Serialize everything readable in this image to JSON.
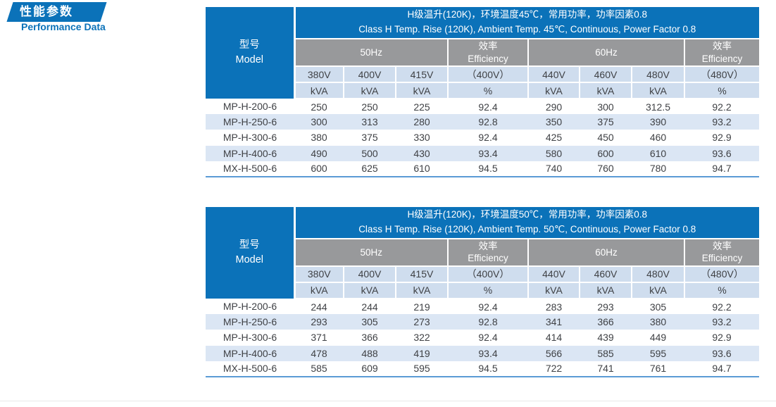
{
  "section": {
    "title_zh": "性能参数",
    "title_en": "Performance Data"
  },
  "colors": {
    "primary_blue": "#0b72b9",
    "header_gray": "#98999b",
    "light_blue_header_row": "#cfddee",
    "stripe_row": "#dbe6f4",
    "table_bottom_line": "#5b9bd5",
    "body_text": "#3f4145"
  },
  "tables": [
    {
      "model_label": {
        "lines": [
          "型号",
          "Model"
        ]
      },
      "header": {
        "lines": [
          "H级温升(120K)，环境温度45℃，常用功率，功率因素0.8",
          "Class H Temp. Rise (120K), Ambient Temp. 45℃, Continuous, Power Factor 0.8"
        ]
      },
      "group_headers": [
        {
          "span": 3,
          "lines": [
            "50Hz"
          ]
        },
        {
          "span": 1,
          "lines": [
            "效率",
            "Efficiency"
          ]
        },
        {
          "span": 3,
          "lines": [
            "60Hz"
          ]
        },
        {
          "span": 1,
          "lines": [
            "效率",
            "Efficiency"
          ]
        }
      ],
      "voltage_headers": [
        "380V",
        "400V",
        "415V",
        "（400V）",
        "440V",
        "460V",
        "480V",
        "（480V）"
      ],
      "unit_headers": [
        "kVA",
        "kVA",
        "kVA",
        "%",
        "kVA",
        "kVA",
        "kVA",
        "%"
      ],
      "rows": [
        {
          "model": "MP-H-200-6",
          "values": [
            "250",
            "250",
            "225",
            "92.4",
            "290",
            "300",
            "312.5",
            "92.2"
          ]
        },
        {
          "model": "MP-H-250-6",
          "values": [
            "300",
            "313",
            "280",
            "92.8",
            "350",
            "375",
            "390",
            "93.2"
          ]
        },
        {
          "model": "MP-H-300-6",
          "values": [
            "380",
            "375",
            "330",
            "92.4",
            "425",
            "450",
            "460",
            "92.9"
          ]
        },
        {
          "model": "MP-H-400-6",
          "values": [
            "490",
            "500",
            "430",
            "93.4",
            "580",
            "600",
            "610",
            "93.6"
          ]
        },
        {
          "model": "MX-H-500-6",
          "values": [
            "600",
            "625",
            "610",
            "94.5",
            "740",
            "760",
            "780",
            "94.7"
          ]
        }
      ]
    },
    {
      "model_label": {
        "lines": [
          "型号",
          "Model"
        ]
      },
      "header": {
        "lines": [
          "H级温升(120K)，环境温度50℃，常用功率，功率因素0.8",
          "Class H Temp. Rise (120K), Ambient Temp. 50℃, Continuous, Power Factor 0.8"
        ]
      },
      "group_headers": [
        {
          "span": 3,
          "lines": [
            "50Hz"
          ]
        },
        {
          "span": 1,
          "lines": [
            "效率",
            "Efficiency"
          ]
        },
        {
          "span": 3,
          "lines": [
            "60Hz"
          ]
        },
        {
          "span": 1,
          "lines": [
            "效率",
            "Efficiency"
          ]
        }
      ],
      "voltage_headers": [
        "380V",
        "400V",
        "415V",
        "（400V）",
        "440V",
        "460V",
        "480V",
        "（480V）"
      ],
      "unit_headers": [
        "kVA",
        "kVA",
        "kVA",
        "%",
        "kVA",
        "kVA",
        "kVA",
        "%"
      ],
      "rows": [
        {
          "model": "MP-H-200-6",
          "values": [
            "244",
            "244",
            "219",
            "92.4",
            "283",
            "293",
            "305",
            "92.2"
          ]
        },
        {
          "model": "MP-H-250-6",
          "values": [
            "293",
            "305",
            "273",
            "92.8",
            "341",
            "366",
            "380",
            "93.2"
          ]
        },
        {
          "model": "MP-H-300-6",
          "values": [
            "371",
            "366",
            "322",
            "92.4",
            "414",
            "439",
            "449",
            "92.9"
          ]
        },
        {
          "model": "MP-H-400-6",
          "values": [
            "478",
            "488",
            "419",
            "93.4",
            "566",
            "585",
            "595",
            "93.6"
          ]
        },
        {
          "model": "MX-H-500-6",
          "values": [
            "585",
            "609",
            "595",
            "94.5",
            "722",
            "741",
            "761",
            "94.7"
          ]
        }
      ]
    }
  ]
}
